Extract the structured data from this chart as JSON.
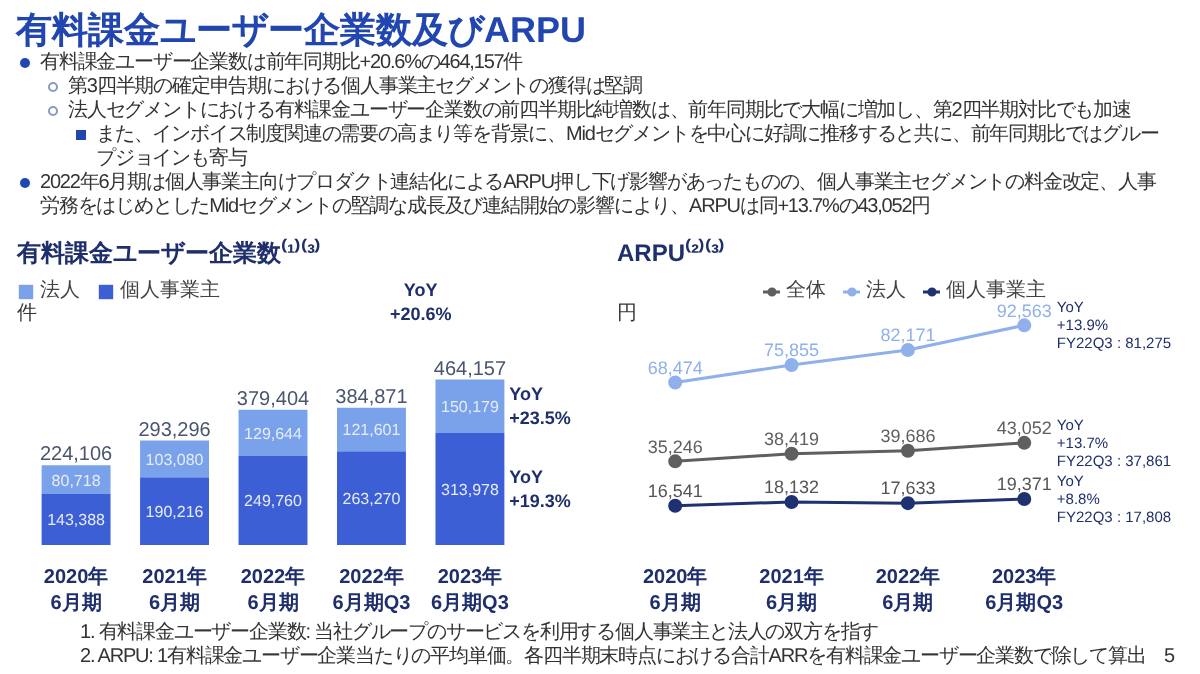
{
  "chart_data": [
    {
      "type": "other",
      "title": "有料課金ユーザー企業数及びARPU",
      "annotations": [
        "有料課金ユーザー企業数は前年同期比+20.6%の464,157件",
        "第3四半期の確定申告期における個人事業主セグメントの獲得は堅調",
        "法人セグメントにおける有料課金ユーザー企業数の前四半期比純増数は、前年同期比で大幅に増加し、第2四半期対比でも加速",
        "また、インボイス制度関連の需要の高まり等を背景に、Midセグメントを中心に好調に推移すると共に、前年同期比ではグループジョインも寄与",
        "2022年6月期は個人事業主向けプロダクト連結化によるARPU押し下げ影響があったものの、個人事業主セグメントの料金改定、人事労務をはじめとしたMidセグメントの堅調な成長及び連結開始の影響により、ARPUは同+13.7%の43,052円",
        "1. 有料課金ユーザー企業数: 当社グループのサービスを利用する個人事業主と法人の双方を指す",
        "2. ARPU: 1有料課金ユーザー企業当たりの平均単価。各四半期末時点における合計ARRを有料課金ユーザー企業数で除して算出",
        "5"
      ]
    },
    {
      "type": "bar",
      "stacked": true,
      "title": "有料課金ユーザー企業数⁽¹⁾⁽³⁾",
      "ylabel": "件",
      "legend": "top left",
      "grid": false,
      "categories": [
        "2020年\n6月期",
        "2021年\n6月期",
        "2022年\n6月期",
        "2022年\n6月期Q3",
        "2023年\n6月期Q3"
      ],
      "series": [
        {
          "name": "個人事業主",
          "color": "#3d5fd6",
          "values": [
            143388,
            190216,
            249760,
            263270,
            313978
          ],
          "value_labels": [
            "143,388",
            "190,216",
            "249,760",
            "263,270",
            "313,978"
          ]
        },
        {
          "name": "法人",
          "color": "#7aa2ea",
          "values": [
            80718,
            103080,
            129644,
            121601,
            150179
          ],
          "value_labels": [
            "80,718",
            "103,080",
            "129,644",
            "121,601",
            "150,179"
          ]
        }
      ],
      "totals": [
        "224,106",
        "293,296",
        "379,404",
        "384,871",
        "464,157"
      ],
      "annotations": [
        "YoY\n+20.6%",
        "YoY\n+23.5%",
        "YoY\n+19.3%"
      ]
    },
    {
      "type": "line",
      "title": "ARPU⁽²⁾⁽³⁾",
      "ylabel": "円",
      "legend": "top",
      "grid": false,
      "marker": "circle",
      "line_style": "solid",
      "categories": [
        "2020年\n6月期",
        "2021年\n6月期",
        "2022年\n6月期",
        "2023年\n6月期Q3"
      ],
      "series": [
        {
          "name": "全体",
          "color": "#5f5f5f",
          "values": [
            35246,
            38419,
            39686,
            43052
          ],
          "value_labels": [
            "35,246",
            "38,419",
            "39,686",
            "43,052"
          ]
        },
        {
          "name": "法人",
          "color": "#8fb0ea",
          "values": [
            68474,
            75855,
            82171,
            92563
          ],
          "value_labels": [
            "68,474",
            "75,855",
            "82,171",
            "92,563"
          ]
        },
        {
          "name": "個人事業主",
          "color": "#1e3170",
          "values": [
            16541,
            18132,
            17633,
            19371
          ],
          "value_labels": [
            "16,541",
            "18,132",
            "17,633",
            "19,371"
          ]
        }
      ],
      "annotations": [
        "YoY\n+13.9%\nFY22Q3 : 81,275",
        "YoY\n+13.7%\nFY22Q3 : 37,861",
        "YoY\n+8.8%\nFY22Q3 : 17,808"
      ]
    }
  ]
}
